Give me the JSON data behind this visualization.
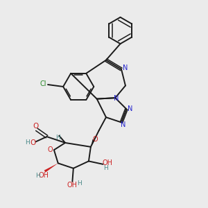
{
  "bg_color": "#ebebeb",
  "bond_color": "#1a1a1a",
  "n_color": "#2222cc",
  "o_color": "#cc2222",
  "cl_color": "#2a8a2a",
  "h_color": "#4a8888",
  "fig_size": [
    3.0,
    3.0
  ],
  "dpi": 100,
  "xlim": [
    0,
    10
  ],
  "ylim": [
    0,
    10
  ]
}
